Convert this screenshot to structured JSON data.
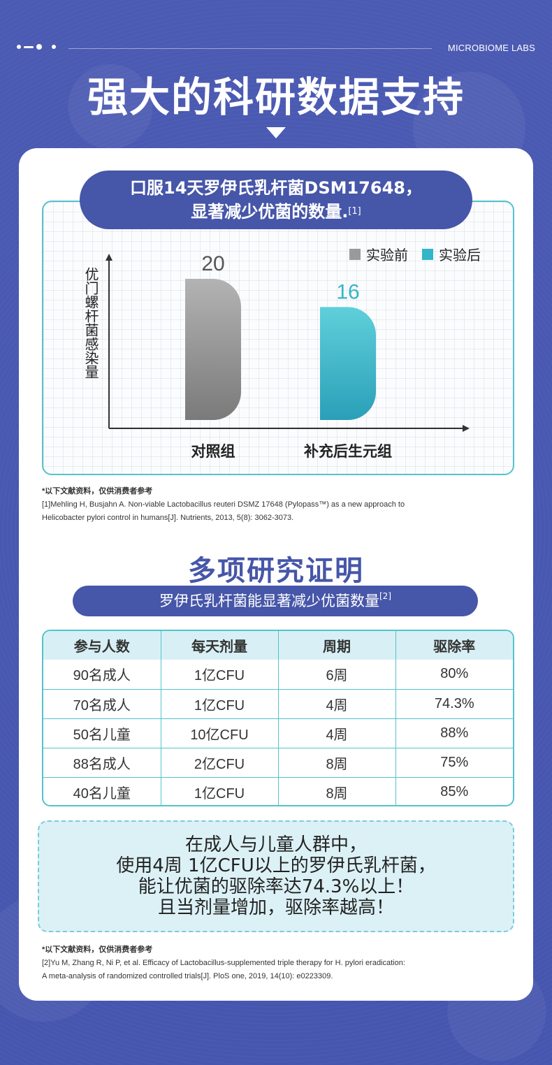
{
  "header": {
    "brand": "MICROBIOME LABS",
    "title": "强大的科研数据支持"
  },
  "chart_section": {
    "title_line1": "口服14天罗伊氏乳杆菌DSM17648，",
    "title_line2": "显著减少优菌的数量.",
    "title_ref": "[1]"
  },
  "chart_data": {
    "type": "bar",
    "categories": [
      "对照组",
      "补充后生元组"
    ],
    "series": [
      {
        "name": "实验前",
        "values": [
          20,
          null
        ],
        "color": "#9a9a9a"
      },
      {
        "name": "实验后",
        "values": [
          null,
          16
        ],
        "color": "#34b5c8"
      }
    ],
    "data_labels": [
      "20",
      "16"
    ],
    "ylabel": "优门螺杆菌感染量",
    "xlabel": "",
    "legend_position": "top-right",
    "ylim": [
      0,
      22
    ],
    "grid": false
  },
  "footnote1": {
    "note": "*以下文献资料，仅供消费者参考",
    "line1": "[1]Mehling H, Busjahn A. Non-viable Lactobacillus reuteri DSMZ 17648 (Pylopass™) as a new approach to",
    "line2": "Helicobacter pylori control in humans[J]. Nutrients, 2013, 5(8): 3062-3073."
  },
  "section2": {
    "title": "多项研究证明",
    "subtitle": "罗伊氏乳杆菌能显著减少优菌数量",
    "subtitle_ref": "[2]"
  },
  "table": {
    "headers": [
      "参与人数",
      "每天剂量",
      "周期",
      "驱除率"
    ],
    "rows": [
      [
        "90名成人",
        "1亿CFU",
        "6周",
        "80%"
      ],
      [
        "70名成人",
        "1亿CFU",
        "4周",
        "74.3%"
      ],
      [
        "50名儿童",
        "10亿CFU",
        "4周",
        "88%"
      ],
      [
        "88名成人",
        "2亿CFU",
        "8周",
        "75%"
      ],
      [
        "40名儿童",
        "1亿CFU",
        "8周",
        "85%"
      ]
    ]
  },
  "summary": {
    "line1": "在成人与儿童人群中，",
    "line2": "使用4周 1亿CFU以上的罗伊氏乳杆菌，",
    "line3": "能让优菌的驱除率达74.3%以上！",
    "line4": "且当剂量增加，驱除率越高！"
  },
  "footnote2": {
    "note": "*以下文献资料，仅供消费者参考",
    "line1": "[2]Yu M, Zhang R, Ni P, et al. Efficacy of Lactobacillus-supplemented triple therapy for H. pylori eradication:",
    "line2": "A meta-analysis of randomized controlled trials[J]. PloS one, 2019, 14(10): e0223309."
  }
}
